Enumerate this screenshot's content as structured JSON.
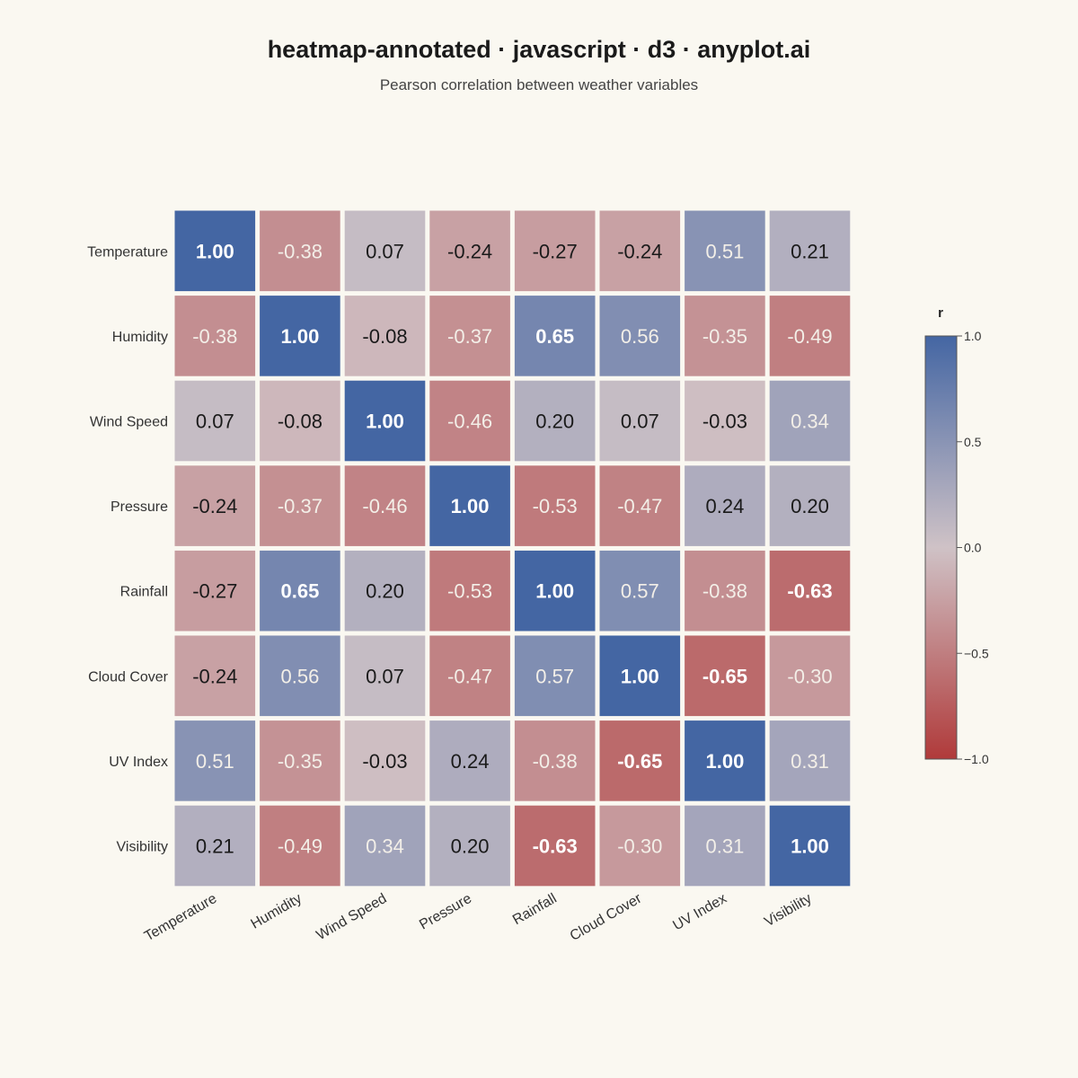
{
  "chart_data": {
    "type": "heatmap",
    "title": "heatmap-annotated · javascript · d3 · anyplot.ai",
    "subtitle": "Pearson correlation between weather variables",
    "rows": [
      "Temperature",
      "Humidity",
      "Wind Speed",
      "Pressure",
      "Rainfall",
      "Cloud Cover",
      "UV Index",
      "Visibility"
    ],
    "columns": [
      "Temperature",
      "Humidity",
      "Wind Speed",
      "Pressure",
      "Rainfall",
      "Cloud Cover",
      "UV Index",
      "Visibility"
    ],
    "values": [
      [
        1.0,
        -0.38,
        0.07,
        -0.24,
        -0.27,
        -0.24,
        0.51,
        0.21
      ],
      [
        -0.38,
        1.0,
        -0.08,
        -0.37,
        0.65,
        0.56,
        -0.35,
        -0.49
      ],
      [
        0.07,
        -0.08,
        1.0,
        -0.46,
        0.2,
        0.07,
        -0.03,
        0.34
      ],
      [
        -0.24,
        -0.37,
        -0.46,
        1.0,
        -0.53,
        -0.47,
        0.24,
        0.2
      ],
      [
        -0.27,
        0.65,
        0.2,
        -0.53,
        1.0,
        0.57,
        -0.38,
        -0.63
      ],
      [
        -0.24,
        0.56,
        0.07,
        -0.47,
        0.57,
        1.0,
        -0.65,
        -0.3
      ],
      [
        0.51,
        -0.35,
        -0.03,
        0.24,
        -0.38,
        -0.65,
        1.0,
        0.31
      ],
      [
        0.21,
        -0.49,
        0.34,
        0.2,
        -0.63,
        -0.3,
        0.31,
        1.0
      ]
    ],
    "color_scale": {
      "domain": [
        -1.0,
        0.0,
        1.0
      ],
      "colors": [
        "#B03A3A",
        "#CFC2C6",
        "#4466A3"
      ]
    },
    "legend": {
      "title": "r",
      "ticks": [
        1.0,
        0.5,
        0.0,
        -0.5,
        -1.0
      ],
      "tick_labels": [
        "1.0",
        "0.5",
        "0.0",
        "−0.5",
        "−1.0"
      ],
      "placement": "right"
    }
  }
}
